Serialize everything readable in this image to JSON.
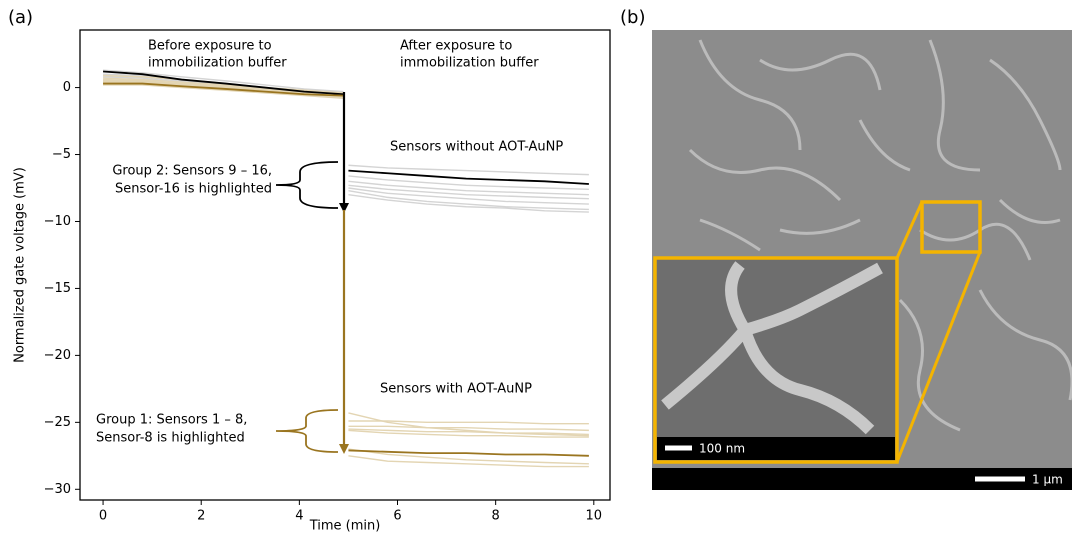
{
  "figure": {
    "panels": [
      "(a)",
      "(b)"
    ]
  },
  "chart_data": {
    "type": "line",
    "xlabel": "Time (min)",
    "ylabel": "Normalized gate voltage (mV)",
    "xlim": [
      -0.47,
      10.33
    ],
    "ylim": [
      -30.8,
      4.3
    ],
    "xticks": [
      0,
      2,
      4,
      6,
      8,
      10
    ],
    "yticks": [
      0,
      {
        "value": -5,
        "label": "−5"
      },
      {
        "value": -10,
        "label": "−10"
      },
      {
        "value": -15,
        "label": "−15"
      },
      {
        "value": -20,
        "label": "−20"
      },
      {
        "value": -25,
        "label": "−25"
      },
      {
        "value": -30,
        "label": "−30"
      }
    ],
    "annotations": [
      {
        "lines": [
          "Before exposure to",
          "immobilization buffer"
        ]
      },
      {
        "lines": [
          "After exposure to",
          "immobilization buffer"
        ]
      },
      {
        "lines": [
          "Sensors without AOT-AuNP"
        ]
      },
      {
        "lines": [
          "Group 2: Sensors 9 – 16,",
          "Sensor-16 is highlighted"
        ]
      },
      {
        "lines": [
          "Sensors with AOT-AuNP"
        ]
      },
      {
        "lines": [
          "Group 1: Sensors 1 – 8,",
          "Sensor-8 is highlighted"
        ]
      }
    ],
    "x": [
      0,
      0.8,
      1.6,
      2.5,
      3.3,
      4.1,
      4.9,
      4.95,
      5.0,
      5.8,
      6.6,
      7.4,
      8.2,
      9.0,
      9.9
    ],
    "series": [
      {
        "color": "#d4d4d4",
        "values": [
          1.3,
          1.1,
          0.8,
          0.5,
          0.2,
          -0.1,
          -0.3,
          null,
          -5.8,
          -6.0,
          -6.1,
          -6.2,
          -6.3,
          -6.4,
          -6.5
        ]
      },
      {
        "color": "#d4d4d4",
        "values": [
          1.0,
          0.9,
          0.6,
          0.3,
          0.0,
          -0.2,
          -0.4,
          null,
          -6.6,
          -6.9,
          -7.1,
          -7.3,
          -7.4,
          -7.5,
          -7.6
        ]
      },
      {
        "color": "#d4d4d4",
        "values": [
          0.8,
          0.7,
          0.4,
          0.2,
          -0.1,
          -0.3,
          -0.5,
          null,
          -7.0,
          -7.3,
          -7.5,
          -7.7,
          -7.8,
          -7.9,
          -8.0
        ]
      },
      {
        "color": "#d4d4d4",
        "values": [
          0.6,
          0.5,
          0.3,
          0.1,
          -0.2,
          -0.4,
          -0.6,
          null,
          -7.3,
          -7.6,
          -7.8,
          -8.0,
          -8.1,
          -8.2,
          -8.3
        ]
      },
      {
        "color": "#d4d4d4",
        "values": [
          0.5,
          0.4,
          0.2,
          0.0,
          -0.3,
          -0.5,
          -0.7,
          null,
          -7.5,
          -7.9,
          -8.1,
          -8.3,
          -8.5,
          -8.6,
          -8.7
        ]
      },
      {
        "color": "#d4d4d4",
        "values": [
          0.9,
          0.8,
          0.5,
          0.2,
          -0.1,
          -0.3,
          -0.5,
          null,
          -7.7,
          -8.2,
          -8.5,
          -8.7,
          -8.9,
          -9.0,
          -9.1
        ]
      },
      {
        "color": "#d4d4d4",
        "values": [
          0.4,
          0.3,
          0.2,
          0.0,
          -0.2,
          -0.4,
          -0.6,
          null,
          -8.0,
          -8.4,
          -8.7,
          -8.9,
          -9.0,
          -9.2,
          -9.3
        ]
      },
      {
        "color": "#e3d5b3",
        "values": [
          0.9,
          0.8,
          0.6,
          0.3,
          0.0,
          -0.2,
          -0.4,
          null,
          -24.9,
          -24.9,
          -25.0,
          -25.0,
          -25.0,
          -25.1,
          -25.1
        ]
      },
      {
        "color": "#e3d5b3",
        "values": [
          0.7,
          0.6,
          0.4,
          0.2,
          -0.1,
          -0.3,
          -0.5,
          null,
          -25.3,
          -25.3,
          -25.4,
          -25.4,
          -25.5,
          -25.5,
          -25.6
        ]
      },
      {
        "color": "#e3d5b3",
        "values": [
          0.6,
          0.5,
          0.3,
          0.1,
          -0.1,
          -0.3,
          -0.5,
          null,
          -25.5,
          -25.6,
          -25.7,
          -25.7,
          -25.8,
          -25.8,
          -25.9
        ]
      },
      {
        "color": "#e3d5b3",
        "values": [
          0.5,
          0.4,
          0.3,
          0.1,
          -0.2,
          -0.4,
          -0.6,
          null,
          -25.6,
          -25.8,
          -25.9,
          -26.0,
          -26.0,
          -26.1,
          -26.1
        ]
      },
      {
        "color": "#e3d5b3",
        "values": [
          0.4,
          0.4,
          0.2,
          0.0,
          -0.2,
          -0.4,
          -0.6,
          null,
          -24.3,
          -25.0,
          -25.4,
          -25.6,
          -25.8,
          -25.9,
          -26.0
        ]
      },
      {
        "color": "#e3d5b3",
        "values": [
          0.3,
          0.3,
          0.1,
          -0.1,
          -0.3,
          -0.5,
          -0.7,
          null,
          -27.0,
          -27.4,
          -27.6,
          -27.8,
          -27.9,
          -28.0,
          -28.1
        ]
      },
      {
        "color": "#e3d5b3",
        "values": [
          0.2,
          0.2,
          0.0,
          -0.2,
          -0.4,
          -0.6,
          -0.8,
          null,
          -27.5,
          -27.9,
          -28.0,
          -28.1,
          -28.2,
          -28.3,
          -28.3
        ]
      },
      {
        "color": "#000000",
        "values": [
          1.2,
          1.0,
          0.6,
          0.3,
          0.0,
          -0.3,
          -0.5,
          null,
          -6.2,
          -6.4,
          -6.6,
          -6.8,
          -6.9,
          -7.0,
          -7.2
        ]
      },
      {
        "color": "#9a7520",
        "values": [
          0.3,
          0.3,
          0.1,
          -0.1,
          -0.3,
          -0.5,
          -0.6,
          null,
          -27.1,
          -27.2,
          -27.3,
          -27.3,
          -27.4,
          -27.4,
          -27.5
        ]
      }
    ]
  },
  "image": {
    "inset_scale": "100 nm",
    "scale": "1 µm"
  }
}
